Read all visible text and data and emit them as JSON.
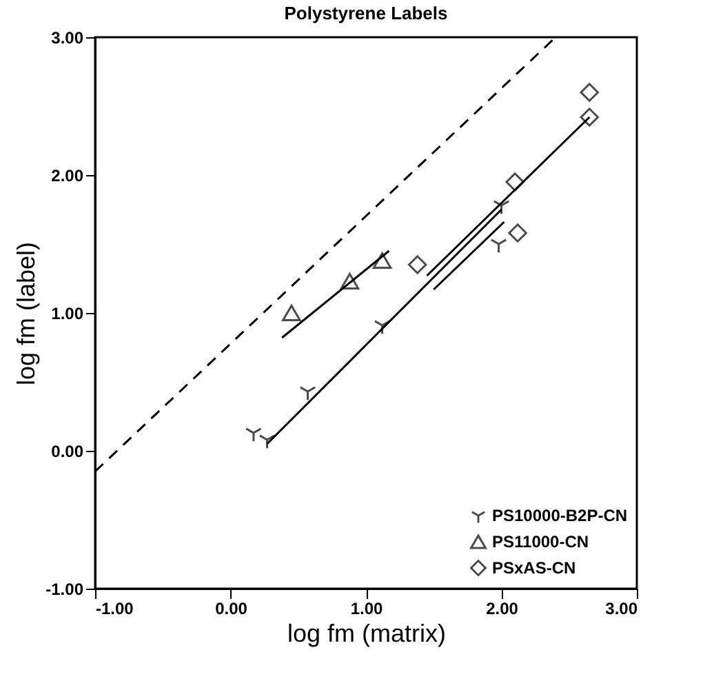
{
  "chart_data": {
    "type": "scatter",
    "title": "Polystyrene Labels",
    "xlabel": "log fm (matrix)",
    "ylabel": "log fm (label)",
    "xlim": [
      -1,
      3
    ],
    "ylim": [
      -1,
      3
    ],
    "xticks": [
      {
        "value": -1,
        "label": "-1.00"
      },
      {
        "value": 0,
        "label": "0.00"
      },
      {
        "value": 1,
        "label": "1.00"
      },
      {
        "value": 2,
        "label": "2.00"
      },
      {
        "value": 3,
        "label": "3.00"
      }
    ],
    "yticks": [
      {
        "value": -1,
        "label": "-1.00"
      },
      {
        "value": 0,
        "label": "0.00"
      },
      {
        "value": 1,
        "label": "1.00"
      },
      {
        "value": 2,
        "label": "2.00"
      },
      {
        "value": 3,
        "label": "3.00"
      }
    ],
    "grid": false,
    "legend": "bottom right",
    "series": [
      {
        "name": "PS10000-B2P-CN",
        "type": "scatter",
        "marker": "cross",
        "color": "#000000",
        "x": [
          0.17,
          0.27,
          0.57,
          1.12,
          2.0,
          1.98
        ],
        "values": [
          0.13,
          0.08,
          0.43,
          0.91,
          1.78,
          1.5
        ]
      },
      {
        "name": "PS11000-CN",
        "type": "scatter",
        "marker": "triangle",
        "color": "#000000",
        "x": [
          0.45,
          0.88,
          1.12
        ],
        "values": [
          1.0,
          1.23,
          1.38
        ]
      },
      {
        "name": "PSxAS-CN",
        "type": "scatter",
        "marker": "diamond",
        "color": "#000000",
        "x": [
          1.38,
          2.1,
          2.12,
          2.65,
          2.65
        ],
        "values": [
          1.35,
          1.95,
          1.58,
          2.6,
          2.42
        ]
      },
      {
        "type": "line",
        "color": "#000000",
        "line_style": "solid",
        "x": [
          0.27,
          2.0
        ],
        "values": [
          0.05,
          1.75
        ]
      },
      {
        "type": "line",
        "color": "#000000",
        "line_style": "solid",
        "x": [
          0.38,
          1.17
        ],
        "values": [
          0.82,
          1.45
        ]
      },
      {
        "type": "line",
        "color": "#000000",
        "line_style": "solid",
        "x": [
          1.45,
          2.65
        ],
        "values": [
          1.27,
          2.42
        ]
      },
      {
        "type": "line",
        "color": "#000000",
        "line_style": "solid",
        "x": [
          1.5,
          2.02
        ],
        "values": [
          1.17,
          1.66
        ]
      },
      {
        "type": "line",
        "color": "#000000",
        "line_style": "dashed",
        "x": [
          -1,
          2.4
        ],
        "values": [
          -0.15,
          3.0
        ]
      }
    ]
  }
}
